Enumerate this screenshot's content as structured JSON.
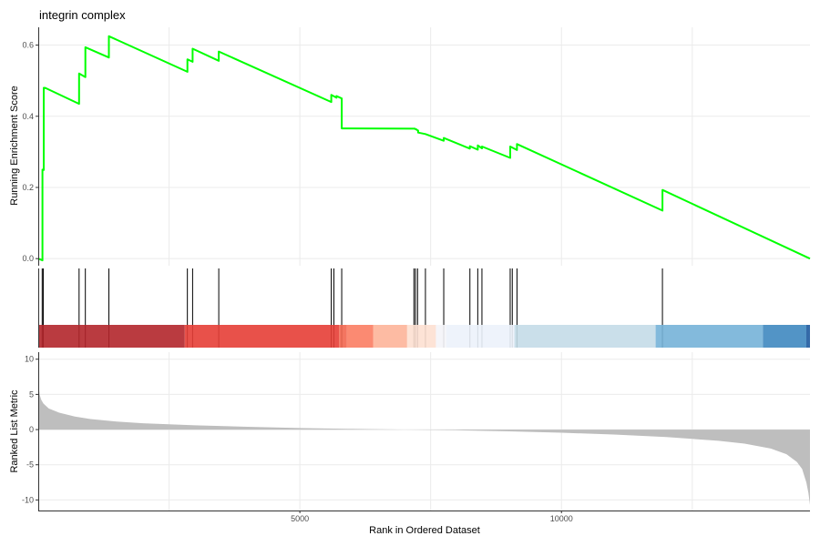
{
  "chart_data": [
    {
      "type": "line",
      "panel": "running-enrichment",
      "title": "integrin complex",
      "ylabel": "Running Enrichment Score",
      "xlim": [
        0,
        14750
      ],
      "ylim": [
        -0.02,
        0.65
      ],
      "yticks": [
        0.0,
        0.2,
        0.4,
        0.6
      ],
      "ytick_labels": [
        "0.0",
        "0.2",
        "0.4",
        "0.6"
      ],
      "grid": true,
      "line_color": "#00ff00",
      "series": [
        {
          "x": [
            0,
            80,
            80,
            105,
            105,
            130,
            130,
            780,
            780,
            900,
            900,
            1350,
            1350,
            2850,
            2850,
            2950,
            2950,
            3450,
            3450,
            5600,
            5600,
            5700,
            5700,
            5800,
            5800,
            7200,
            7200,
            7230,
            7230,
            7260,
            7260,
            7400,
            7400,
            7750,
            7750,
            8250,
            8250,
            8400,
            8400,
            8480,
            8480,
            9020,
            9020,
            9150,
            9150,
            11930,
            11930,
            14750
          ],
          "y": [
            0.0,
            -0.005,
            0.25,
            0.249,
            0.48,
            0.479,
            0.48,
            0.435,
            0.52,
            0.51,
            0.594,
            0.565,
            0.625,
            0.525,
            0.56,
            0.553,
            0.59,
            0.556,
            0.582,
            0.44,
            0.46,
            0.452,
            0.457,
            0.45,
            0.366,
            0.365,
            0.364,
            0.363,
            0.362,
            0.36,
            0.354,
            0.35,
            0.35,
            0.331,
            0.339,
            0.309,
            0.316,
            0.306,
            0.318,
            0.31,
            0.315,
            0.283,
            0.315,
            0.305,
            0.322,
            0.135,
            0.193,
            0.0
          ]
        }
      ]
    },
    {
      "type": "heatmap",
      "panel": "gene-hits",
      "xlim": [
        0,
        14750
      ],
      "hits": [
        75,
        95,
        780,
        900,
        1350,
        2850,
        2950,
        3450,
        5600,
        5650,
        5800,
        7180,
        7210,
        7250,
        7400,
        7750,
        8250,
        8400,
        8480,
        9020,
        9060,
        9150,
        11930
      ],
      "bands": [
        {
          "from": 0,
          "to": 2800,
          "color": "#b2262b"
        },
        {
          "from": 2800,
          "to": 5750,
          "color": "#e53e36"
        },
        {
          "from": 5750,
          "to": 5900,
          "color": "#f2664f"
        },
        {
          "from": 5900,
          "to": 6400,
          "color": "#fb7d63"
        },
        {
          "from": 6400,
          "to": 7050,
          "color": "#fdb499"
        },
        {
          "from": 7050,
          "to": 7600,
          "color": "#fde0d2"
        },
        {
          "from": 7600,
          "to": 7800,
          "color": "#f4f4f8"
        },
        {
          "from": 7800,
          "to": 9100,
          "color": "#ecf2fb"
        },
        {
          "from": 9100,
          "to": 11800,
          "color": "#c4dbe8"
        },
        {
          "from": 11800,
          "to": 13850,
          "color": "#75b3d8"
        },
        {
          "from": 13850,
          "to": 14680,
          "color": "#3f88c0"
        },
        {
          "from": 14680,
          "to": 14750,
          "color": "#1e5a9f"
        }
      ]
    },
    {
      "type": "area",
      "panel": "ranked-list",
      "xlabel": "Rank in Ordered Dataset",
      "ylabel": "Ranked List Metric",
      "xlim": [
        0,
        14750
      ],
      "ylim": [
        -11.5,
        11
      ],
      "yticks": [
        10,
        5,
        0,
        -5,
        -10
      ],
      "ytick_labels": [
        "10",
        "5",
        "0",
        "-5",
        "-10"
      ],
      "xticks": [
        5000,
        10000
      ],
      "xtick_labels": [
        "5000",
        "10000"
      ],
      "grid": true,
      "fill_color": "#bebebe",
      "x": [
        0,
        10,
        30,
        60,
        100,
        200,
        400,
        700,
        1000,
        1500,
        2000,
        3000,
        4000,
        5000,
        6000,
        7000,
        8000,
        9000,
        10000,
        11000,
        12000,
        13000,
        13500,
        14000,
        14300,
        14500,
        14600,
        14680,
        14720,
        14750
      ],
      "y": [
        7.2,
        6.0,
        4.9,
        4.2,
        3.7,
        3.0,
        2.4,
        1.85,
        1.5,
        1.15,
        0.9,
        0.6,
        0.4,
        0.22,
        0.1,
        0.0,
        -0.1,
        -0.25,
        -0.45,
        -0.7,
        -1.05,
        -1.6,
        -2.0,
        -2.7,
        -3.5,
        -4.6,
        -5.6,
        -7.5,
        -9.0,
        -10.7
      ]
    }
  ]
}
